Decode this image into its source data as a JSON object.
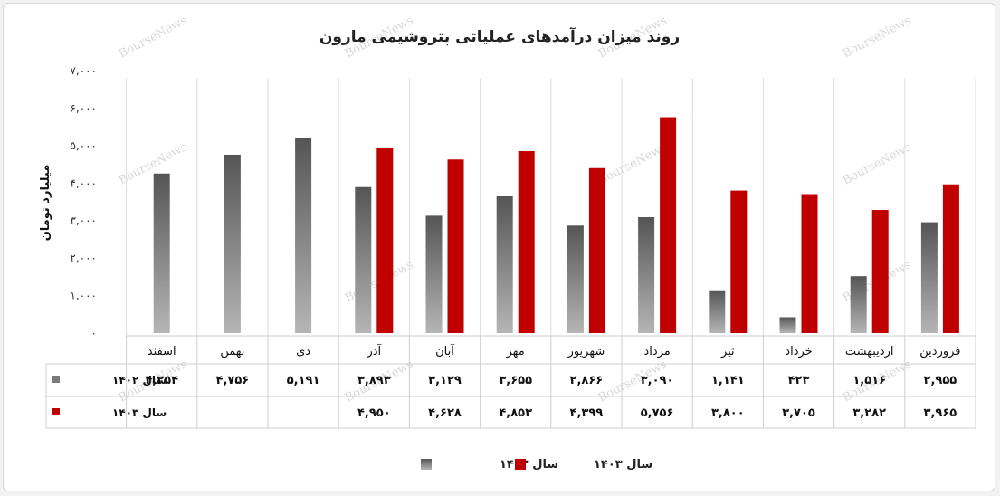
{
  "chart_data": {
    "type": "bar",
    "title": "روند میزان درآمدهای عملیاتی پتروشیمی مارون",
    "ylabel": "میلیارد تومان",
    "ylim": [
      0,
      7000
    ],
    "yticks": [
      "۰",
      "۱,۰۰۰",
      "۲,۰۰۰",
      "۳,۰۰۰",
      "۴,۰۰۰",
      "۵,۰۰۰",
      "۶,۰۰۰",
      "۷,۰۰۰"
    ],
    "categories": [
      "فروردین",
      "اردیبهشت",
      "خرداد",
      "تیر",
      "مرداد",
      "شهریور",
      "مهر",
      "آبان",
      "آذر",
      "دی",
      "بهمن",
      "اسفند"
    ],
    "series": [
      {
        "name": "سال ۱۴۰۲",
        "color": "#7a7a7a",
        "values": [
          2955,
          1516,
          423,
          1141,
          3090,
          2866,
          3655,
          3129,
          3893,
          5191,
          4756,
          4254
        ],
        "labels": [
          "۲,۹۵۵",
          "۱,۵۱۶",
          "۴۲۳",
          "۱,۱۴۱",
          "۳,۰۹۰",
          "۲,۸۶۶",
          "۳,۶۵۵",
          "۳,۱۲۹",
          "۳,۸۹۳",
          "۵,۱۹۱",
          "۴,۷۵۶",
          "۴,۲۵۴"
        ]
      },
      {
        "name": "سال ۱۴۰۳",
        "color": "#c00000",
        "values": [
          3965,
          3282,
          3705,
          3800,
          5756,
          4399,
          4853,
          4628,
          4950,
          null,
          null,
          null
        ],
        "labels": [
          "۳,۹۶۵",
          "۳,۲۸۲",
          "۳,۷۰۵",
          "۳,۸۰۰",
          "۵,۷۵۶",
          "۴,۳۹۹",
          "۴,۸۵۳",
          "۴,۶۲۸",
          "۴,۹۵۰",
          "",
          "",
          ""
        ]
      }
    ],
    "legend": "bottom",
    "grid": false,
    "data_table": true,
    "watermark": "BourseNews"
  }
}
